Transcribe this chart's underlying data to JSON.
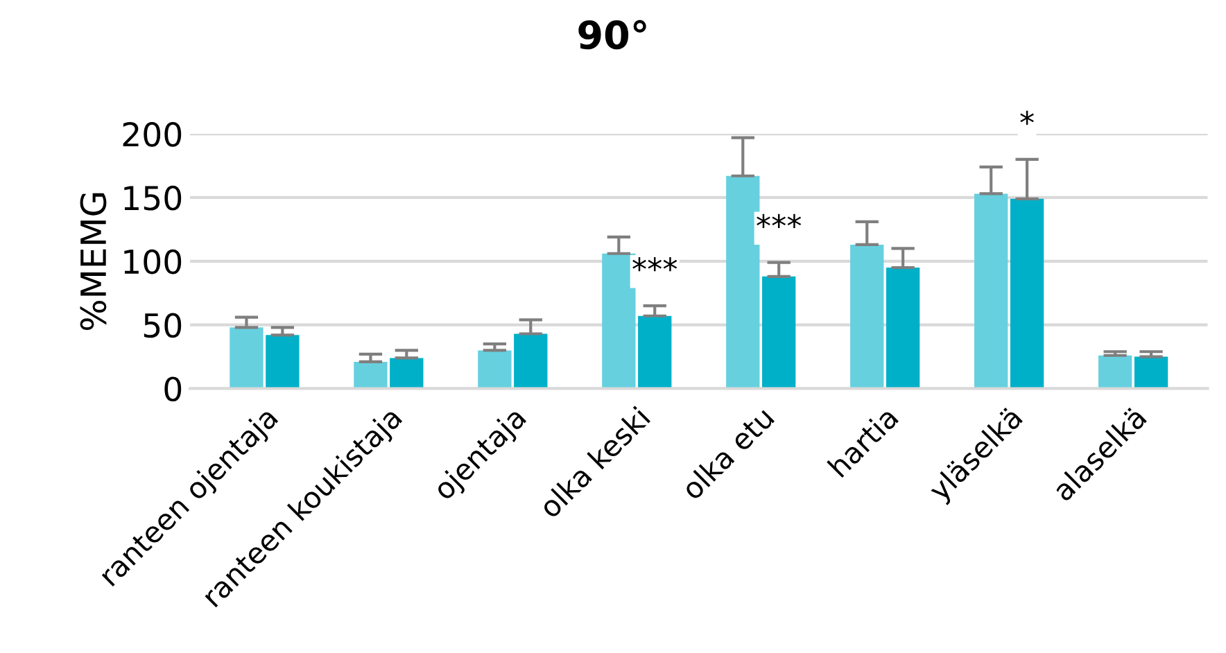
{
  "chart_data": {
    "type": "bar",
    "title": "90°",
    "ylabel": "%MEMG",
    "categories": [
      "ranteen ojentaja",
      "ranteen koukistaja",
      "ojentaja",
      "olka keski",
      "olka etu",
      "hartia",
      "yläselkä",
      "alaselkä"
    ],
    "series": [
      {
        "color": "#66d0df",
        "values": [
          48,
          21,
          30,
          106,
          167,
          113,
          153,
          26
        ],
        "errors": [
          [
            48,
            56
          ],
          [
            21,
            27
          ],
          [
            30,
            35
          ],
          [
            106,
            119
          ],
          [
            167,
            197
          ],
          [
            113,
            131
          ],
          [
            153,
            174
          ],
          [
            26,
            29
          ]
        ]
      },
      {
        "color": "#00b0c8",
        "values": [
          42,
          24,
          43,
          57,
          88,
          95,
          149,
          25
        ],
        "errors": [
          [
            42,
            48
          ],
          [
            24,
            30
          ],
          [
            43,
            54
          ],
          [
            57,
            65
          ],
          [
            88,
            99
          ],
          [
            95,
            110
          ],
          [
            149,
            180
          ],
          [
            25,
            29
          ]
        ]
      }
    ],
    "annotations": [
      {
        "text": "***",
        "x": "olka keski",
        "y": 65
      },
      {
        "text": "***",
        "x": "olka etu",
        "y": 99
      },
      {
        "text": "*",
        "x": "yläselkä",
        "y": 180
      }
    ],
    "ylim": [
      0,
      200
    ],
    "yticks": [
      0,
      50,
      100,
      150,
      200
    ],
    "grid": "y"
  }
}
